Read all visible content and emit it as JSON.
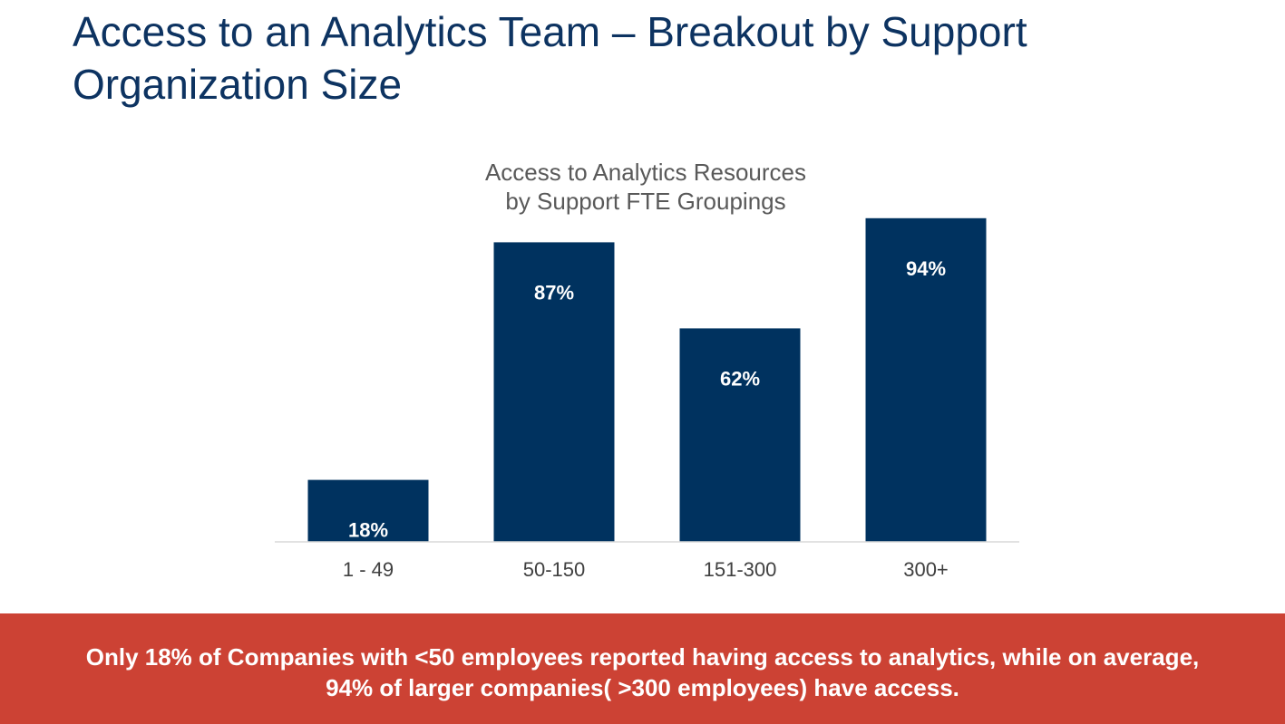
{
  "slide": {
    "title_line1": "Access to an Analytics Team – Breakout by Support",
    "title_line2": "Organization Size"
  },
  "chart_data": {
    "type": "bar",
    "title_line1": "Access to Analytics Resources",
    "title_line2": "by Support FTE Groupings",
    "categories": [
      "1 - 49",
      "50-150",
      "151-300",
      "300+"
    ],
    "values": [
      18,
      87,
      62,
      94
    ],
    "data_labels": [
      "18%",
      "87%",
      "62%",
      "94%"
    ],
    "xlabel": "",
    "ylabel": "",
    "ylim": [
      0,
      100
    ],
    "grid": false,
    "legend": "none",
    "bar_color": "#00325f",
    "label_color": "#ffffff"
  },
  "banner": {
    "line1": "Only 18% of Companies with <50 employees reported having access to analytics, while on average,",
    "line2": "94% of larger companies( >300 employees) have access.",
    "color": "#cc4234"
  }
}
